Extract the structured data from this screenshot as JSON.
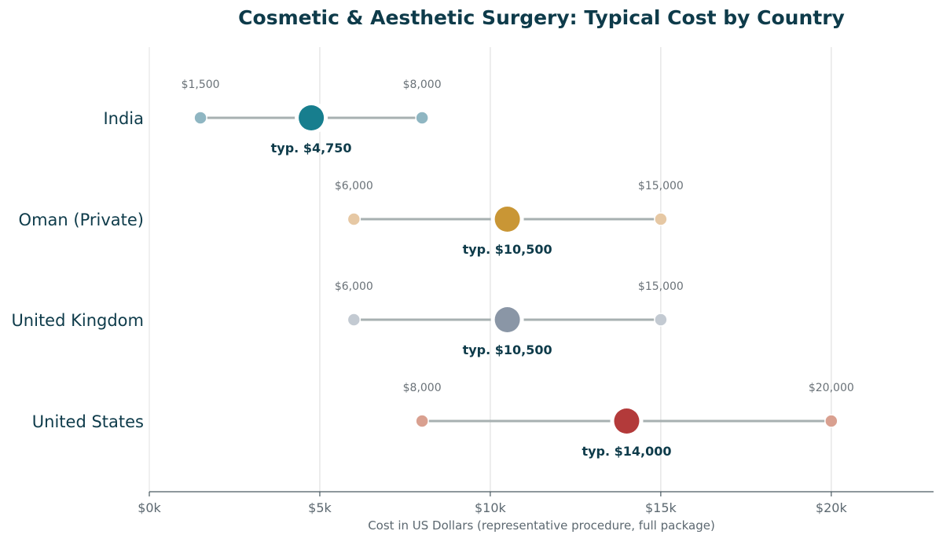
{
  "chart_data": {
    "type": "dumbbell",
    "title": "Cosmetic & Aesthetic Surgery: Typical Cost by Country",
    "xlabel": "Cost in US Dollars (representative procedure, full package)",
    "xlim": [
      0,
      23000
    ],
    "xticks": [
      0,
      5000,
      10000,
      15000,
      20000
    ],
    "xtick_labels": [
      "$0k",
      "$5k",
      "$10k",
      "$15k",
      "$20k"
    ],
    "grid": "vertical",
    "rows": [
      {
        "country": "India",
        "min": 1500,
        "max": 8000,
        "typical": 4750,
        "min_label": "$1,500",
        "max_label": "$8,000",
        "typical_label": "typ. $4,750",
        "color": "#177e8e",
        "end_color": "#8fb6c2"
      },
      {
        "country": "Oman (Private)",
        "min": 6000,
        "max": 15000,
        "typical": 10500,
        "min_label": "$6,000",
        "max_label": "$15,000",
        "typical_label": "typ. $10,500",
        "color": "#c99635",
        "end_color": "#e6c8a4"
      },
      {
        "country": "United Kingdom",
        "min": 6000,
        "max": 15000,
        "typical": 10500,
        "min_label": "$6,000",
        "max_label": "$15,000",
        "typical_label": "typ. $10,500",
        "color": "#8a96a6",
        "end_color": "#c3cad2"
      },
      {
        "country": "United States",
        "min": 8000,
        "max": 20000,
        "typical": 14000,
        "min_label": "$8,000",
        "max_label": "$20,000",
        "typical_label": "typ. $14,000",
        "color": "#b33a3a",
        "end_color": "#d9a090"
      }
    ]
  }
}
